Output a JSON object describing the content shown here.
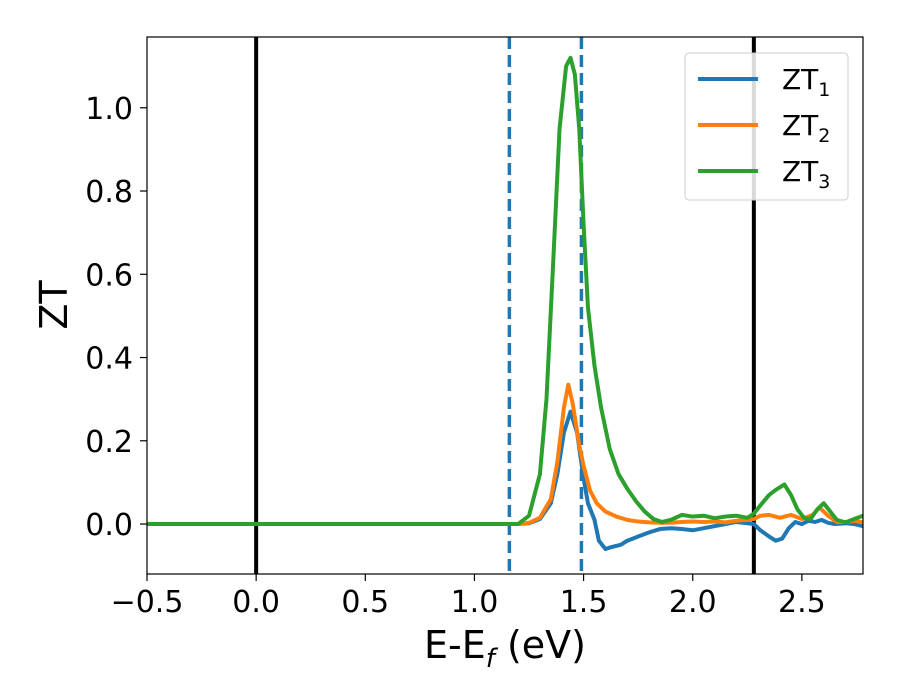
{
  "chart_data": {
    "type": "line",
    "xlabel": "E-E",
    "xlabel_sub": "f",
    "xlabel_unit": " (eV)",
    "ylabel": "ZT",
    "xlim": [
      -0.5,
      2.78
    ],
    "ylim": [
      -0.12,
      1.17
    ],
    "xticks": [
      -0.5,
      0.0,
      0.5,
      1.0,
      1.5,
      2.0,
      2.5
    ],
    "xtick_labels": [
      "−0.5",
      "0.0",
      "0.5",
      "1.0",
      "1.5",
      "2.0",
      "2.5"
    ],
    "yticks": [
      0.0,
      0.2,
      0.4,
      0.6,
      0.8,
      1.0
    ],
    "ytick_labels": [
      "0.0",
      "0.2",
      "0.4",
      "0.6",
      "0.8",
      "1.0"
    ],
    "grid": false,
    "legend_position": "top-right",
    "vertical_lines": [
      {
        "x": 0.0,
        "style": "solid",
        "color": "#000000"
      },
      {
        "x": 2.28,
        "style": "solid",
        "color": "#000000"
      },
      {
        "x": 1.16,
        "style": "dashed",
        "color": "#1f77b4"
      },
      {
        "x": 1.49,
        "style": "dashed",
        "color": "#1f77b4"
      }
    ],
    "series": [
      {
        "name": "ZT",
        "sub": "1",
        "color": "#1f77b4",
        "x": [
          -0.5,
          1.0,
          1.2,
          1.25,
          1.3,
          1.35,
          1.38,
          1.41,
          1.44,
          1.47,
          1.5,
          1.52,
          1.55,
          1.57,
          1.6,
          1.63,
          1.67,
          1.7,
          1.75,
          1.8,
          1.85,
          1.9,
          1.95,
          2.0,
          2.05,
          2.1,
          2.15,
          2.2,
          2.25,
          2.28,
          2.31,
          2.35,
          2.38,
          2.41,
          2.44,
          2.47,
          2.5,
          2.53,
          2.56,
          2.59,
          2.62,
          2.65,
          2.7,
          2.74,
          2.78
        ],
        "y": [
          0.0,
          0.0,
          0.0,
          0.002,
          0.012,
          0.05,
          0.12,
          0.22,
          0.27,
          0.22,
          0.11,
          0.05,
          0.01,
          -0.04,
          -0.06,
          -0.055,
          -0.05,
          -0.04,
          -0.03,
          -0.02,
          -0.012,
          -0.01,
          -0.012,
          -0.015,
          -0.01,
          -0.005,
          0.0,
          0.005,
          0.002,
          0.0,
          -0.015,
          -0.03,
          -0.04,
          -0.035,
          -0.01,
          0.005,
          0.0,
          0.008,
          0.005,
          0.01,
          0.003,
          0.0,
          0.002,
          0.0,
          -0.005
        ]
      },
      {
        "name": "ZT",
        "sub": "2",
        "color": "#ff7f0e",
        "x": [
          -0.5,
          1.0,
          1.2,
          1.25,
          1.3,
          1.35,
          1.38,
          1.41,
          1.43,
          1.45,
          1.48,
          1.5,
          1.53,
          1.56,
          1.6,
          1.65,
          1.7,
          1.75,
          1.8,
          1.85,
          1.9,
          1.95,
          2.0,
          2.05,
          2.1,
          2.15,
          2.2,
          2.25,
          2.28,
          2.31,
          2.35,
          2.4,
          2.45,
          2.5,
          2.55,
          2.58,
          2.62,
          2.66,
          2.7,
          2.74,
          2.78
        ],
        "y": [
          0.0,
          0.0,
          0.0,
          0.003,
          0.015,
          0.06,
          0.15,
          0.28,
          0.335,
          0.29,
          0.19,
          0.14,
          0.08,
          0.05,
          0.03,
          0.018,
          0.01,
          0.006,
          0.004,
          0.003,
          0.003,
          0.005,
          0.006,
          0.005,
          0.006,
          0.004,
          0.008,
          0.01,
          0.012,
          0.02,
          0.022,
          0.015,
          0.022,
          0.012,
          0.022,
          0.04,
          0.02,
          0.005,
          0.005,
          0.008,
          0.004
        ]
      },
      {
        "name": "ZT",
        "sub": "3",
        "color": "#2ca02c",
        "x": [
          -0.5,
          1.0,
          1.2,
          1.25,
          1.3,
          1.33,
          1.36,
          1.39,
          1.42,
          1.44,
          1.46,
          1.48,
          1.5,
          1.52,
          1.55,
          1.58,
          1.62,
          1.66,
          1.7,
          1.74,
          1.78,
          1.82,
          1.86,
          1.9,
          1.95,
          2.0,
          2.05,
          2.1,
          2.15,
          2.2,
          2.25,
          2.28,
          2.31,
          2.35,
          2.38,
          2.42,
          2.45,
          2.48,
          2.51,
          2.54,
          2.57,
          2.6,
          2.63,
          2.66,
          2.7,
          2.74,
          2.78
        ],
        "y": [
          0.0,
          0.0,
          0.0,
          0.02,
          0.12,
          0.3,
          0.62,
          0.95,
          1.1,
          1.12,
          1.08,
          0.95,
          0.72,
          0.52,
          0.38,
          0.28,
          0.18,
          0.12,
          0.085,
          0.055,
          0.03,
          0.012,
          0.005,
          0.01,
          0.022,
          0.018,
          0.02,
          0.014,
          0.018,
          0.02,
          0.015,
          0.025,
          0.045,
          0.07,
          0.082,
          0.095,
          0.07,
          0.035,
          0.015,
          0.012,
          0.035,
          0.05,
          0.03,
          0.01,
          0.004,
          0.012,
          0.02
        ]
      }
    ]
  }
}
